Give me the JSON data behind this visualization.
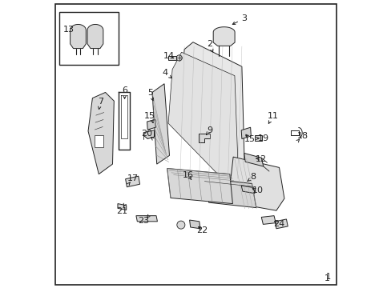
{
  "background_color": "#ffffff",
  "fig_width": 4.89,
  "fig_height": 3.6,
  "dpi": 100,
  "label_fontsize": 8,
  "line_color": "#222222"
}
